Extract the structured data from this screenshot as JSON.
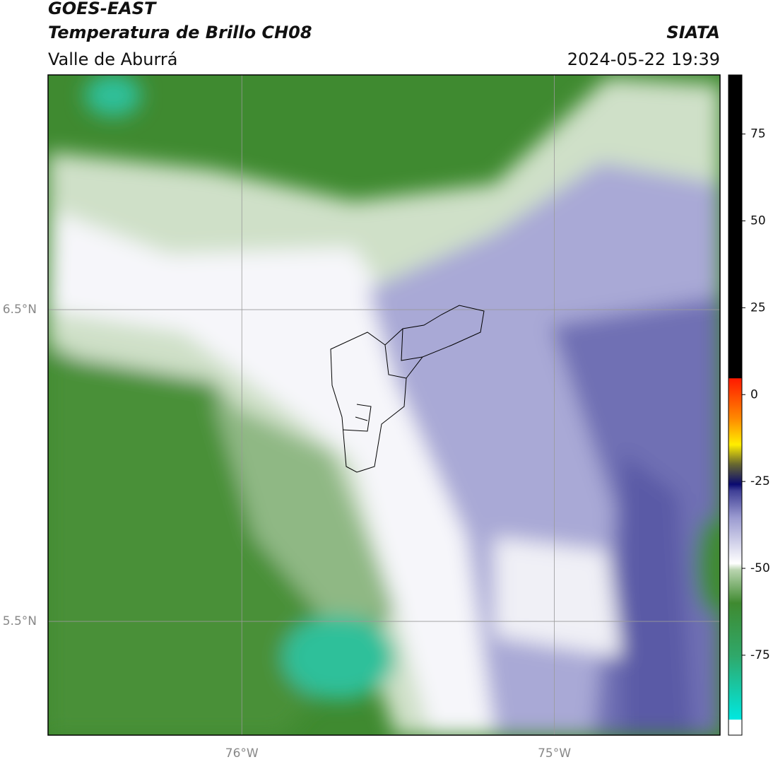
{
  "map": {
    "title": "GOES-EAST",
    "subtitle": "Temperatura de Brillo CH08",
    "region": "Valle de Aburrá",
    "source": "SIATA",
    "datetime": "2024-05-22 19:39",
    "xlim": [
      -76.62,
      -74.47
    ],
    "ylim": [
      5.135,
      7.253
    ],
    "xticks": [
      {
        "value": -76,
        "label": "76°W"
      },
      {
        "value": -75,
        "label": "75°W"
      }
    ],
    "yticks": [
      {
        "value": 6.5,
        "label": "6.5°N"
      },
      {
        "value": 5.5,
        "label": "5.5°N"
      }
    ],
    "grid": true,
    "colorbar": {
      "lim": [
        -98,
        92
      ],
      "ticks": [
        75,
        50,
        25,
        0,
        -25,
        -50,
        -75
      ]
    }
  }
}
